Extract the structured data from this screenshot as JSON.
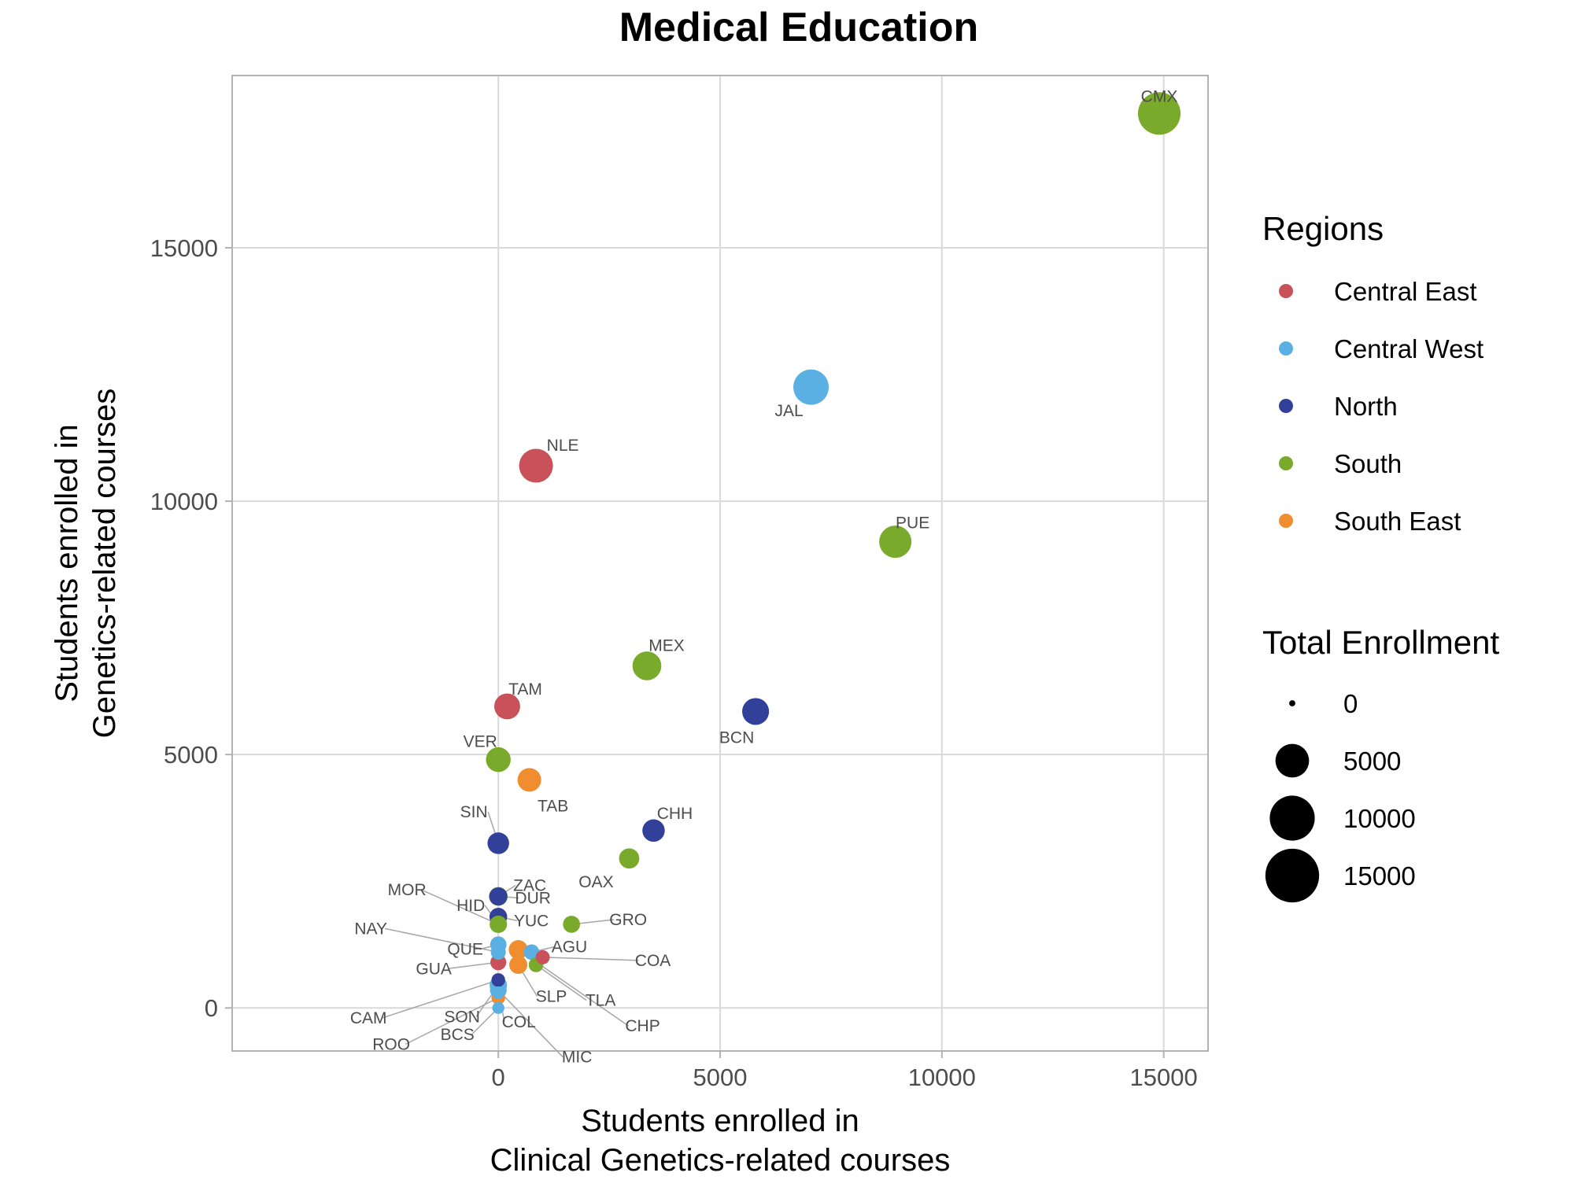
{
  "chart_data": {
    "type": "scatter",
    "title": "Medical Education",
    "xlabel_lines": [
      "Students enrolled in",
      "Clinical Genetics-related courses"
    ],
    "ylabel_lines": [
      "Students enrolled in",
      "Genetics-related courses"
    ],
    "xlim": [
      -6000,
      16000
    ],
    "ylim": [
      -850,
      18400
    ],
    "x_ticks": [
      0,
      5000,
      10000,
      15000
    ],
    "y_ticks": [
      0,
      5000,
      10000,
      15000
    ],
    "x_tick_labels": [
      "0",
      "5000",
      "10000",
      "15000"
    ],
    "y_tick_labels": [
      "0",
      "5000",
      "10000",
      "15000"
    ],
    "grid": true,
    "legend_placement": "right",
    "color_legend": {
      "title": "Regions",
      "entries": [
        {
          "label": "Central East",
          "color": "#c8515a"
        },
        {
          "label": "Central West",
          "color": "#5bb0e3"
        },
        {
          "label": "North",
          "color": "#33409a"
        },
        {
          "label": "South",
          "color": "#7aaa2b"
        },
        {
          "label": "South East",
          "color": "#f08d2e"
        }
      ]
    },
    "size_legend": {
      "title": "Total Enrollment",
      "entries": [
        {
          "label": "0",
          "value": 0
        },
        {
          "label": "5000",
          "value": 5000
        },
        {
          "label": "10000",
          "value": 10000
        },
        {
          "label": "15000",
          "value": 15000
        }
      ]
    },
    "points": [
      {
        "label": "CMX",
        "region": "South",
        "x": 14900,
        "y": 17650,
        "size": 16000
      },
      {
        "label": "JAL",
        "region": "Central West",
        "x": 7050,
        "y": 12250,
        "size": 10500
      },
      {
        "label": "NLE",
        "region": "Central East",
        "x": 850,
        "y": 10700,
        "size": 9500
      },
      {
        "label": "PUE",
        "region": "South",
        "x": 8950,
        "y": 9200,
        "size": 8500
      },
      {
        "label": "MEX",
        "region": "South",
        "x": 3350,
        "y": 6750,
        "size": 6500
      },
      {
        "label": "BCN",
        "region": "North",
        "x": 5800,
        "y": 5850,
        "size": 5500
      },
      {
        "label": "TAM",
        "region": "Central East",
        "x": 200,
        "y": 5950,
        "size": 5000
      },
      {
        "label": "VER",
        "region": "South",
        "x": 0,
        "y": 4900,
        "size": 4500
      },
      {
        "label": "TAB",
        "region": "South East",
        "x": 700,
        "y": 4500,
        "size": 4000
      },
      {
        "label": "CHH",
        "region": "North",
        "x": 3500,
        "y": 3500,
        "size": 3500
      },
      {
        "label": "SIN",
        "region": "North",
        "x": 0,
        "y": 3250,
        "size": 3200
      },
      {
        "label": "OAX",
        "region": "South",
        "x": 2950,
        "y": 2950,
        "size": 2700
      },
      {
        "label": "DUR",
        "region": "North",
        "x": 0,
        "y": 2200,
        "size": 2000
      },
      {
        "label": "ZAC",
        "region": "South",
        "x": 0,
        "y": 2200,
        "size": 2200
      },
      {
        "label": "HID",
        "region": "South",
        "x": 0,
        "y": 1650,
        "size": 1800
      },
      {
        "label": "MOR",
        "region": "South",
        "x": 0,
        "y": 1650,
        "size": 1600
      },
      {
        "label": "YUC",
        "region": "North",
        "x": 0,
        "y": 1800,
        "size": 1900
      },
      {
        "label": "QUE",
        "region": "Central West",
        "x": 0,
        "y": 1250,
        "size": 1500
      },
      {
        "label": "GRO",
        "region": "South",
        "x": 1650,
        "y": 1650,
        "size": 1700
      },
      {
        "label": "NAY",
        "region": "Central West",
        "x": 0,
        "y": 1100,
        "size": 1200
      },
      {
        "label": "AGU",
        "region": "Central West",
        "x": 750,
        "y": 1100,
        "size": 1300
      },
      {
        "label": "COA",
        "region": "Central East",
        "x": 1000,
        "y": 1000,
        "size": 1000
      },
      {
        "label": "GUA",
        "region": "Central East",
        "x": 0,
        "y": 900,
        "size": 1400
      },
      {
        "label": "TLA",
        "region": "South",
        "x": 850,
        "y": 850,
        "size": 1100
      },
      {
        "label": "CAM",
        "region": "North",
        "x": 0,
        "y": 550,
        "size": 900
      },
      {
        "label": "CHP",
        "region": "South East",
        "x": 450,
        "y": 1150,
        "size": 2300
      },
      {
        "label": "SON",
        "region": "Central West",
        "x": 0,
        "y": 450,
        "size": 1800
      },
      {
        "label": "SLP",
        "region": "South East",
        "x": 450,
        "y": 850,
        "size": 2000
      },
      {
        "label": "MIC",
        "region": "Central West",
        "x": 0,
        "y": 350,
        "size": 1600
      },
      {
        "label": "ROO",
        "region": "South East",
        "x": 0,
        "y": 200,
        "size": 900
      },
      {
        "label": "BCS",
        "region": "Central West",
        "x": 0,
        "y": 0,
        "size": 600
      },
      {
        "label": "COL",
        "region": "Central West",
        "x": 0,
        "y": 300,
        "size": 700
      }
    ]
  }
}
